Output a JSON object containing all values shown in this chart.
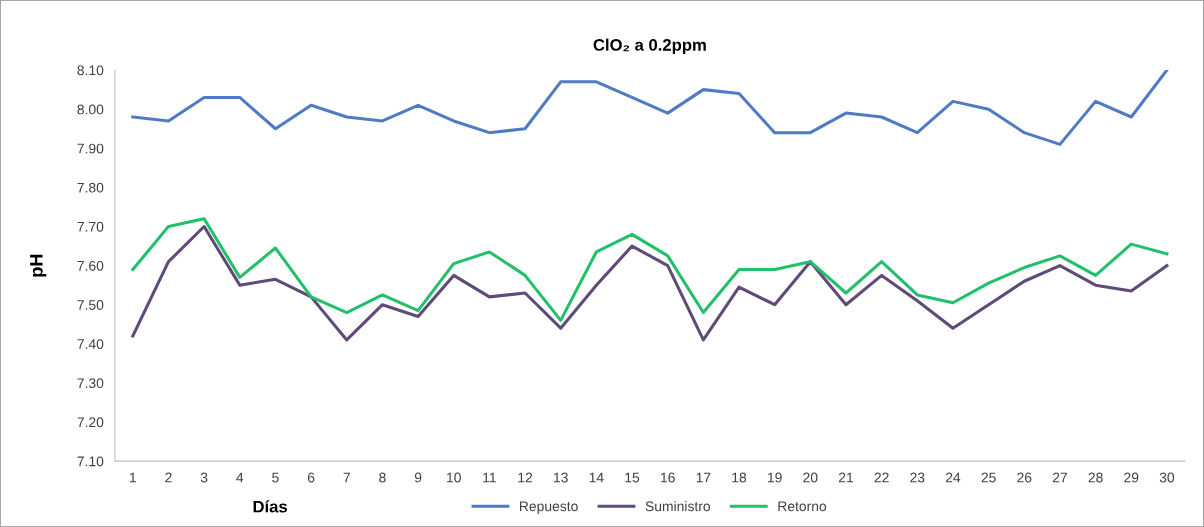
{
  "chart_data": {
    "type": "line",
    "title": "ClO₂ a 0.2ppm",
    "xlabel": "Días",
    "ylabel": "pH",
    "categories": [
      "1",
      "2",
      "3",
      "4",
      "5",
      "6",
      "7",
      "8",
      "9",
      "10",
      "11",
      "12",
      "13",
      "14",
      "15",
      "16",
      "17",
      "18",
      "19",
      "20",
      "21",
      "22",
      "23",
      "24",
      "25",
      "26",
      "27",
      "28",
      "29",
      "30"
    ],
    "series": [
      {
        "name": "Repuesto",
        "color": "#4f7bc4",
        "values": [
          7.98,
          7.97,
          8.03,
          8.03,
          7.95,
          8.01,
          7.98,
          7.97,
          8.01,
          7.97,
          7.94,
          7.95,
          8.07,
          8.07,
          8.03,
          7.99,
          8.05,
          8.04,
          7.94,
          7.94,
          7.99,
          7.98,
          7.94,
          8.02,
          8.0,
          7.94,
          7.91,
          8.02,
          7.98,
          8.1
        ]
      },
      {
        "name": "Suministro",
        "color": "#5f4a78",
        "values": [
          7.42,
          7.61,
          7.7,
          7.55,
          7.565,
          7.52,
          7.41,
          7.5,
          7.47,
          7.575,
          7.52,
          7.53,
          7.44,
          7.55,
          7.65,
          7.6,
          7.41,
          7.545,
          7.5,
          7.61,
          7.5,
          7.575,
          7.51,
          7.44,
          7.5,
          7.56,
          7.6,
          7.55,
          7.535,
          7.6
        ]
      },
      {
        "name": "Retorno",
        "color": "#22c06a",
        "values": [
          7.59,
          7.7,
          7.72,
          7.57,
          7.645,
          7.52,
          7.48,
          7.525,
          7.485,
          7.605,
          7.635,
          7.575,
          7.46,
          7.635,
          7.68,
          7.625,
          7.48,
          7.59,
          7.59,
          7.61,
          7.53,
          7.61,
          7.525,
          7.505,
          7.555,
          7.595,
          7.625,
          7.575,
          7.655,
          7.63
        ]
      }
    ],
    "ylim": [
      7.1,
      8.1
    ],
    "yticks": [
      {
        "value": 7.1,
        "label": "7.10"
      },
      {
        "value": 7.2,
        "label": "7.20"
      },
      {
        "value": 7.3,
        "label": "7.30"
      },
      {
        "value": 7.4,
        "label": "7.40"
      },
      {
        "value": 7.5,
        "label": "7.50"
      },
      {
        "value": 7.6,
        "label": "7.60"
      },
      {
        "value": 7.7,
        "label": "7.70"
      },
      {
        "value": 7.8,
        "label": "7.80"
      },
      {
        "value": 7.9,
        "label": "7.90"
      },
      {
        "value": 8.0,
        "label": "8.00"
      },
      {
        "value": 8.1,
        "label": "8.10"
      }
    ],
    "grid": false,
    "legend": "bottom",
    "marker": "none",
    "line_style": "solid"
  }
}
